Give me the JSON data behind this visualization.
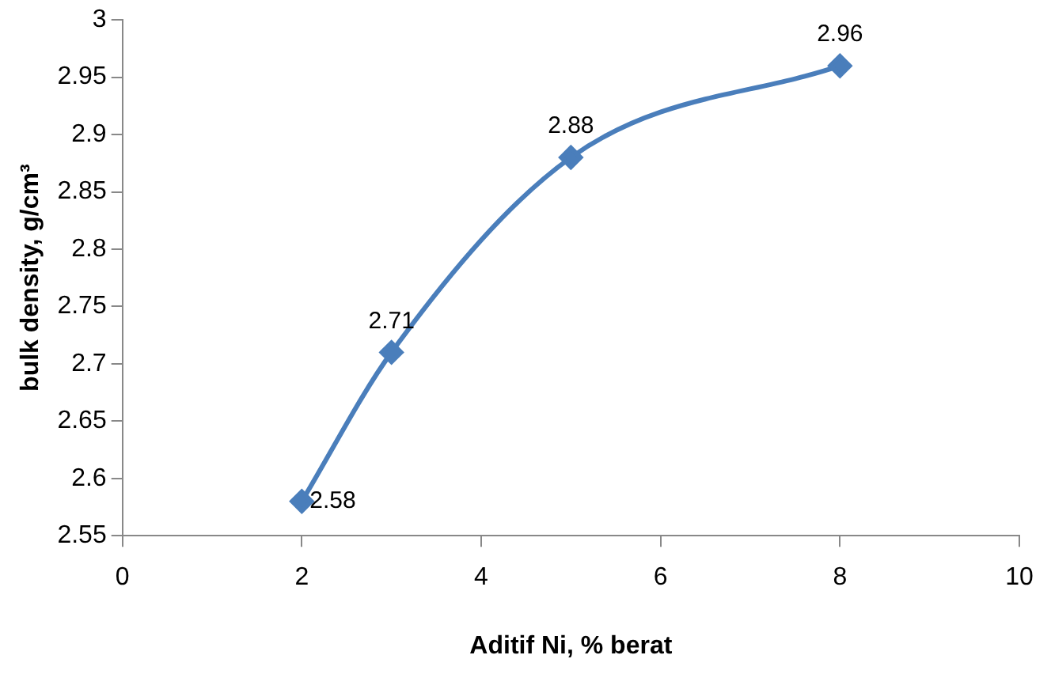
{
  "chart_data": {
    "type": "line",
    "xlabel": "Aditif Ni, % berat",
    "ylabel": "bulk density, g/cm³",
    "x": [
      2,
      3,
      5,
      8
    ],
    "series": [
      {
        "color": "#4a7ebb",
        "values": [
          2.58,
          2.71,
          2.88,
          2.96
        ]
      }
    ],
    "xlim": [
      0,
      10
    ],
    "xticks": [
      0,
      2,
      4,
      6,
      8,
      10
    ],
    "ylim": [
      2.55,
      3
    ],
    "yticks": [
      2.55,
      2.6,
      2.65,
      2.7,
      2.75,
      2.8,
      2.85,
      2.9,
      2.95,
      3
    ],
    "grid": false,
    "legend": false,
    "marker": "diamond",
    "line_style": "solid",
    "data_labels": true
  }
}
